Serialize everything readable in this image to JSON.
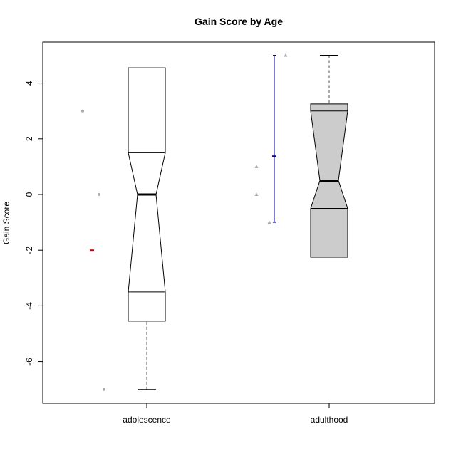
{
  "chart_data": {
    "type": "boxplot",
    "title": "Gain Score by Age",
    "xlabel": "",
    "ylabel": "Gain Score",
    "ylim": [
      -7.5,
      5.4
    ],
    "y_ticks": [
      -6,
      -4,
      -2,
      0,
      2,
      4
    ],
    "categories": [
      "adolescence",
      "adulthood"
    ],
    "notch": true,
    "groups": [
      {
        "name": "adolescence",
        "fill": "#ffffff",
        "whisker_low": -7,
        "q1": -3.5,
        "median": 0,
        "q3": 1.5,
        "whisker_high": 3,
        "notch_low": -4.55,
        "notch_high": 4.55,
        "points": [
          {
            "y": 3,
            "shape": "circle"
          },
          {
            "y": 0,
            "shape": "circle"
          },
          {
            "y": -7,
            "shape": "circle"
          }
        ],
        "marker": {
          "y": -2,
          "color": "#cc0000"
        }
      },
      {
        "name": "adulthood",
        "fill": "#cccccc",
        "whisker_low": -1,
        "q1": -0.5,
        "median": 0.5,
        "q3": 3,
        "whisker_high": 5,
        "notch_low": -2.25,
        "notch_high": 3.25,
        "points": [
          {
            "y": 1,
            "shape": "triangle"
          },
          {
            "y": 0,
            "shape": "triangle"
          },
          {
            "y": -1,
            "shape": "triangle"
          },
          {
            "y": 5,
            "shape": "triangle"
          }
        ],
        "interval": {
          "low": -1,
          "high": 5,
          "mid": 1.375,
          "color": "#0000aa"
        }
      }
    ],
    "grid": false,
    "legend": "none"
  }
}
